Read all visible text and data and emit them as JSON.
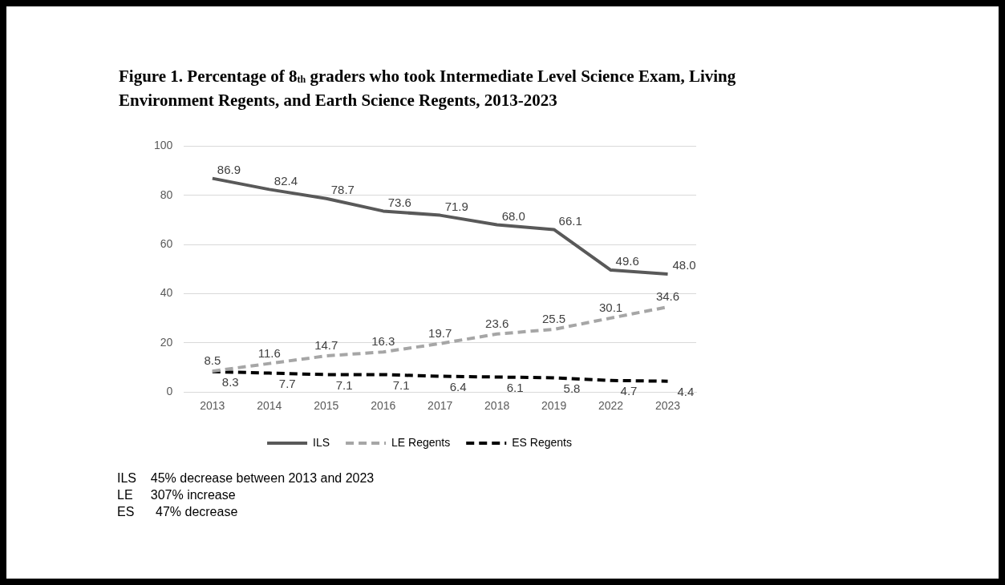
{
  "chart_data": {
    "type": "line",
    "title": "Figure 1. Percentage of 8$_{th}$ graders who took Intermediate Level Science Exam, Living Environment Regents, and Earth Science Regents, 2013-2023",
    "categories": [
      "2013",
      "2014",
      "2015",
      "2016",
      "2017",
      "2018",
      "2019",
      "2022",
      "2023"
    ],
    "series": [
      {
        "name": "ILS",
        "color": "#595959",
        "line_style": "solid",
        "values": [
          86.9,
          82.4,
          78.7,
          73.6,
          71.9,
          68.0,
          66.1,
          49.6,
          48.0
        ],
        "value_labels": [
          "86.9",
          "82.4",
          "78.7",
          "73.6",
          "71.9",
          "68.0",
          "66.1",
          "49.6",
          "48.0"
        ]
      },
      {
        "name": "LE Regents",
        "color": "#a6a6a6",
        "line_style": "dashed",
        "values": [
          8.5,
          11.6,
          14.7,
          16.3,
          19.7,
          23.6,
          25.5,
          30.1,
          34.6
        ],
        "value_labels": [
          "8.5",
          "11.6",
          "14.7",
          "16.3",
          "19.7",
          "23.6",
          "25.5",
          "30.1",
          "34.6"
        ]
      },
      {
        "name": "ES Regents",
        "color": "#000000",
        "line_style": "dashed",
        "values": [
          8.3,
          7.7,
          7.1,
          7.1,
          6.4,
          6.1,
          5.8,
          4.7,
          4.4
        ],
        "value_labels": [
          "8.3",
          "7.7",
          "7.1",
          "7.1",
          "6.4",
          "6.1",
          "5.8",
          "4.7",
          "4.4"
        ]
      }
    ],
    "ylim": [
      0,
      100
    ],
    "yticks": [
      0,
      20,
      40,
      60,
      80,
      100
    ],
    "grid": "y",
    "legend": "bottom",
    "marker": "none",
    "annotations": [
      "ILS    45% decrease between 2013 and 2023",
      "LE     307% increase",
      "ES      47% decrease"
    ]
  }
}
